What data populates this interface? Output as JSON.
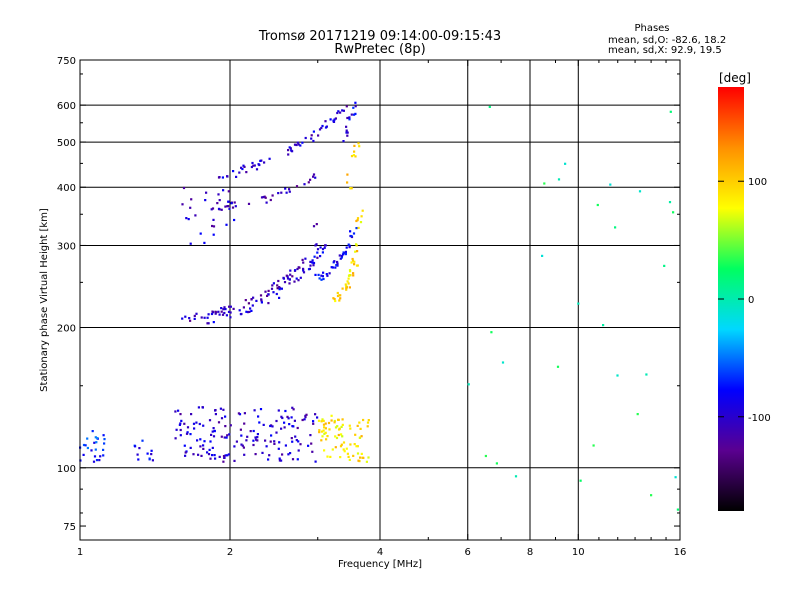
{
  "chart_data": {
    "type": "scatter",
    "title": "Tromsø 20171219 09:14:00-09:15:43",
    "subtitle": "RwPretec (8p)",
    "xlabel": "Frequency [MHz]",
    "ylabel": "Stationary phase Virtual Height [km]",
    "x_scale": "log",
    "y_scale": "log",
    "xlim": [
      1,
      16
    ],
    "ylim": [
      70,
      750
    ],
    "x_ticks": [
      1,
      2,
      4,
      6,
      8,
      10,
      16
    ],
    "x_tick_labels": [
      "1",
      "2",
      "4",
      "6",
      "8",
      "10",
      "16"
    ],
    "y_ticks": [
      75,
      100,
      200,
      300,
      400,
      500,
      600,
      750
    ],
    "y_tick_labels": [
      "75",
      "100",
      "200",
      "300",
      "400",
      "500",
      "600",
      "750"
    ],
    "grid_x": [
      2,
      4,
      6,
      8,
      10
    ],
    "grid_y": [
      100,
      200,
      300,
      400,
      500,
      600
    ],
    "colorbar": {
      "label": "[deg]",
      "range": [
        -180,
        180
      ],
      "ticks": [
        100,
        0,
        -100
      ],
      "tick_labels": [
        "100",
        "0",
        "-100"
      ],
      "stops": [
        "#000000",
        "#5a0090",
        "#0000ff",
        "#00d8ff",
        "#00ff60",
        "#ffff00",
        "#ff9000",
        "#ff0000"
      ]
    },
    "stats": {
      "heading": "Phases",
      "o_line": "mean, sd,O: -82.6, 18.2",
      "x_line": "mean, sd,X:  92.9, 19.5"
    },
    "clusters": [
      {
        "kind": "curve",
        "phase": -110,
        "x": [
          1.55,
          1.7,
          1.85,
          2.0,
          2.2,
          2.4,
          2.6,
          2.8,
          2.95,
          3.0
        ],
        "y": [
          210,
          210,
          213,
          220,
          228,
          240,
          255,
          275,
          300,
          340
        ],
        "n": 70
      },
      {
        "kind": "curve",
        "phase": -95,
        "x": [
          1.8,
          2.0,
          2.2,
          2.4,
          2.6,
          2.8,
          3.0,
          3.1
        ],
        "y": [
          205,
          212,
          220,
          230,
          245,
          262,
          285,
          300
        ],
        "n": 55
      },
      {
        "kind": "curve",
        "phase": -100,
        "x": [
          1.9,
          2.0,
          2.2,
          2.4,
          2.6,
          2.8,
          3.0,
          3.2,
          3.4
        ],
        "y": [
          420,
          425,
          440,
          460,
          480,
          500,
          520,
          555,
          590
        ],
        "n": 60
      },
      {
        "kind": "curve",
        "phase": -105,
        "x": [
          1.85,
          2.0,
          2.2,
          2.4,
          2.6,
          2.8,
          3.0
        ],
        "y": [
          365,
          365,
          370,
          380,
          395,
          410,
          425
        ],
        "n": 35
      },
      {
        "kind": "curve",
        "phase": -85,
        "x": [
          3.0,
          3.15,
          3.3,
          3.45,
          3.55
        ],
        "y": [
          255,
          262,
          275,
          295,
          330
        ],
        "n": 40
      },
      {
        "kind": "curve",
        "phase": 95,
        "x": [
          3.2,
          3.35,
          3.45,
          3.55,
          3.6,
          3.65
        ],
        "y": [
          230,
          235,
          250,
          270,
          300,
          360
        ],
        "n": 45
      },
      {
        "kind": "curve",
        "phase": 100,
        "x": [
          3.45,
          3.55,
          3.6
        ],
        "y": [
          400,
          450,
          500
        ],
        "n": 12
      },
      {
        "kind": "curve",
        "phase": -90,
        "x": [
          3.35,
          3.45,
          3.55
        ],
        "y": [
          500,
          540,
          600
        ],
        "n": 15
      },
      {
        "kind": "blob",
        "phase": -100,
        "xr": [
          1.55,
          3.0
        ],
        "yr": [
          103,
          135
        ],
        "n": 170
      },
      {
        "kind": "blob",
        "phase": 90,
        "xr": [
          3.0,
          3.8
        ],
        "yr": [
          103,
          130
        ],
        "n": 80
      },
      {
        "kind": "blob",
        "phase": -70,
        "xr": [
          1.0,
          1.12
        ],
        "yr": [
          103,
          120
        ],
        "n": 25
      },
      {
        "kind": "blob",
        "phase": -85,
        "xr": [
          1.28,
          1.4
        ],
        "yr": [
          103,
          115
        ],
        "n": 12
      },
      {
        "kind": "blob",
        "phase": -100,
        "xr": [
          1.6,
          2.1
        ],
        "yr": [
          300,
          400
        ],
        "n": 25
      },
      {
        "kind": "blob",
        "phase": 10,
        "xr": [
          6.0,
          16.0
        ],
        "yr": [
          80,
          640
        ],
        "n": 30
      }
    ]
  }
}
